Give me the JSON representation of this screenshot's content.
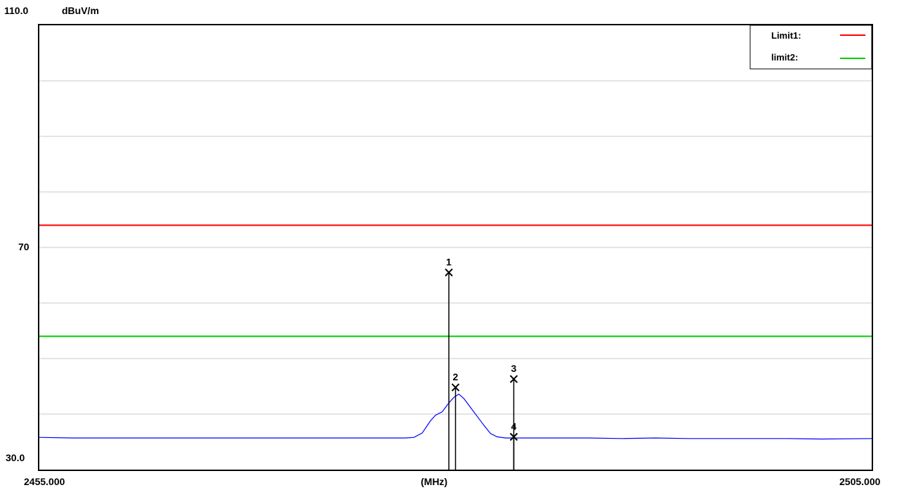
{
  "chart_data": {
    "type": "line",
    "ylabel_unit": "dBuV/m",
    "y_top_label": "110.0",
    "y_mid_label": "70",
    "y_bottom_label": "30.0",
    "x_left_label": "2455.000",
    "x_center_label": "(MHz)",
    "x_right_label": "2505.000",
    "xlim": [
      2455.0,
      2505.0
    ],
    "ylim": [
      30.0,
      110.0
    ],
    "y_grid_values": [
      40,
      50,
      60,
      70,
      80,
      90,
      100
    ],
    "limits": [
      {
        "name": "Limit1:",
        "value": 74.0,
        "color": "#ff0000"
      },
      {
        "name": "limit2:",
        "value": 54.0,
        "color": "#00cc00"
      }
    ],
    "trace": {
      "color": "#0000ff",
      "points": [
        [
          2455.0,
          35.8
        ],
        [
          2457.0,
          35.7
        ],
        [
          2459.0,
          35.7
        ],
        [
          2461.0,
          35.7
        ],
        [
          2463.0,
          35.7
        ],
        [
          2465.0,
          35.7
        ],
        [
          2467.0,
          35.7
        ],
        [
          2469.0,
          35.7
        ],
        [
          2471.0,
          35.7
        ],
        [
          2473.0,
          35.7
        ],
        [
          2475.0,
          35.7
        ],
        [
          2477.0,
          35.7
        ],
        [
          2477.5,
          35.8
        ],
        [
          2478.0,
          36.6
        ],
        [
          2478.5,
          38.8
        ],
        [
          2478.8,
          39.8
        ],
        [
          2479.2,
          40.4
        ],
        [
          2479.6,
          42.0
        ],
        [
          2479.9,
          43.0
        ],
        [
          2480.2,
          43.6
        ],
        [
          2480.5,
          42.8
        ],
        [
          2480.9,
          41.2
        ],
        [
          2481.3,
          39.6
        ],
        [
          2481.7,
          38.0
        ],
        [
          2482.1,
          36.5
        ],
        [
          2482.5,
          35.9
        ],
        [
          2483.0,
          35.7
        ],
        [
          2484.0,
          35.7
        ],
        [
          2486.0,
          35.7
        ],
        [
          2488.0,
          35.7
        ],
        [
          2490.0,
          35.6
        ],
        [
          2492.0,
          35.7
        ],
        [
          2494.0,
          35.6
        ],
        [
          2496.0,
          35.6
        ],
        [
          2498.0,
          35.6
        ],
        [
          2500.0,
          35.6
        ],
        [
          2502.0,
          35.5
        ],
        [
          2505.0,
          35.6
        ]
      ]
    },
    "markers": [
      {
        "label": "1",
        "x": 2479.6,
        "y": 65.5
      },
      {
        "label": "2",
        "x": 2480.0,
        "y": 44.8
      },
      {
        "label": "3",
        "x": 2483.5,
        "y": 46.3
      },
      {
        "label": "4",
        "x": 2483.5,
        "y": 35.9
      }
    ]
  }
}
